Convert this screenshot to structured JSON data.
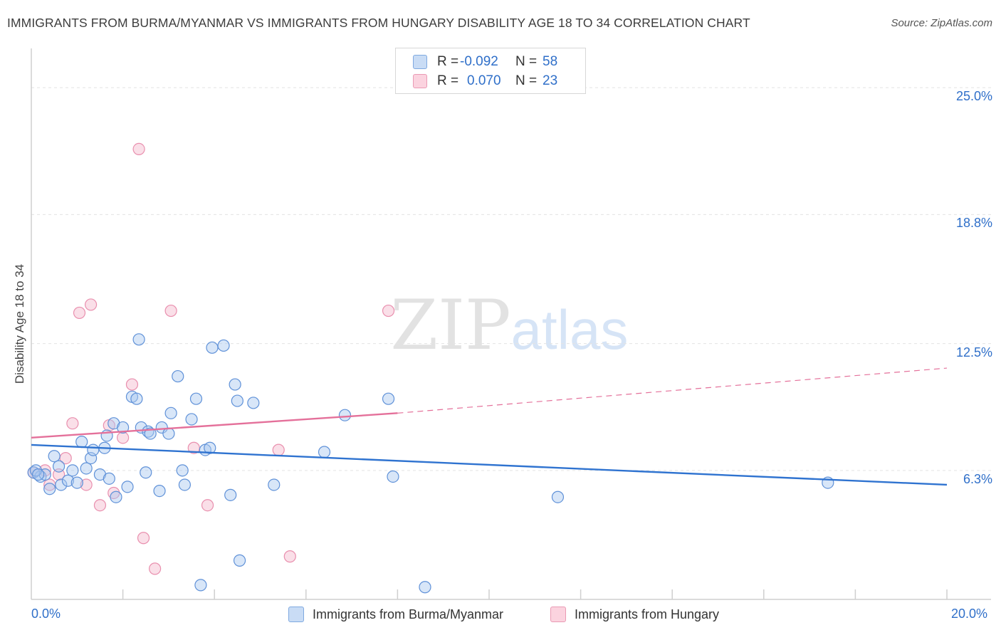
{
  "header": {
    "title": "IMMIGRANTS FROM BURMA/MYANMAR VS IMMIGRANTS FROM HUNGARY DISABILITY AGE 18 TO 34 CORRELATION CHART",
    "source": "Source: ZipAtlas.com"
  },
  "watermark": {
    "zip": "ZIP",
    "atlas": "atlas"
  },
  "legend": {
    "rows": [
      {
        "r_label": "R =",
        "r_value": "-0.092",
        "n_label": "N =",
        "n_value": "58",
        "color": "#a9c8f0"
      },
      {
        "r_label": "R =",
        "r_value": "0.070",
        "n_label": "N =",
        "n_value": "23",
        "color": "#f5b8cb"
      }
    ]
  },
  "bottom_legend": {
    "series1": "Immigrants from Burma/Myanmar",
    "series2": "Immigrants from Hungary"
  },
  "chart_data": {
    "type": "scatter",
    "title": "IMMIGRANTS FROM BURMA/MYANMAR VS IMMIGRANTS FROM HUNGARY DISABILITY AGE 18 TO 34 CORRELATION CHART",
    "xlabel": "",
    "ylabel": "Disability Age 18 to 34",
    "xlim": [
      0,
      20
    ],
    "ylim": [
      0,
      26.5
    ],
    "x_tick_labels": [
      "0.0%",
      "20.0%"
    ],
    "y_ticks": [
      {
        "value": 25.0,
        "label": "25.0%"
      },
      {
        "value": 18.8,
        "label": "18.8%"
      },
      {
        "value": 12.5,
        "label": "12.5%"
      },
      {
        "value": 6.3,
        "label": "6.3%"
      }
    ],
    "grid": true,
    "colors": {
      "series1": "#2f73d0",
      "series2": "#e4709a",
      "fill1": "#a9c8f0",
      "fill2": "#f5b8cb"
    },
    "series": [
      {
        "name": "Immigrants from Burma/Myanmar",
        "trend": {
          "x": [
            0,
            20
          ],
          "y": [
            7.55,
            5.6
          ]
        },
        "points": [
          [
            0.05,
            6.2
          ],
          [
            0.2,
            6.0
          ],
          [
            0.3,
            6.1
          ],
          [
            0.4,
            5.4
          ],
          [
            0.5,
            7.0
          ],
          [
            0.6,
            6.5
          ],
          [
            0.65,
            5.6
          ],
          [
            0.8,
            5.8
          ],
          [
            0.9,
            6.3
          ],
          [
            1.1,
            7.7
          ],
          [
            1.2,
            6.4
          ],
          [
            1.3,
            6.9
          ],
          [
            1.35,
            7.3
          ],
          [
            1.5,
            6.1
          ],
          [
            1.6,
            7.4
          ],
          [
            1.65,
            8.0
          ],
          [
            1.7,
            5.9
          ],
          [
            1.8,
            8.6
          ],
          [
            1.85,
            5.0
          ],
          [
            2.0,
            8.4
          ],
          [
            2.1,
            5.5
          ],
          [
            2.2,
            9.9
          ],
          [
            2.3,
            9.8
          ],
          [
            2.35,
            12.7
          ],
          [
            2.4,
            8.4
          ],
          [
            2.5,
            6.2
          ],
          [
            2.55,
            8.2
          ],
          [
            2.6,
            8.1
          ],
          [
            2.8,
            5.3
          ],
          [
            2.85,
            8.4
          ],
          [
            3.0,
            8.1
          ],
          [
            3.05,
            9.1
          ],
          [
            3.2,
            10.9
          ],
          [
            3.3,
            6.3
          ],
          [
            3.35,
            5.6
          ],
          [
            3.5,
            8.8
          ],
          [
            3.6,
            9.8
          ],
          [
            3.7,
            0.7
          ],
          [
            3.8,
            7.3
          ],
          [
            3.9,
            7.4
          ],
          [
            3.95,
            12.3
          ],
          [
            4.2,
            12.4
          ],
          [
            4.35,
            5.1
          ],
          [
            4.45,
            10.5
          ],
          [
            4.5,
            9.7
          ],
          [
            4.55,
            1.9
          ],
          [
            4.85,
            9.6
          ],
          [
            5.3,
            5.6
          ],
          [
            6.4,
            7.2
          ],
          [
            6.85,
            9.0
          ],
          [
            7.8,
            9.8
          ],
          [
            7.9,
            6.0
          ],
          [
            8.6,
            0.6
          ],
          [
            11.5,
            5.0
          ],
          [
            17.4,
            5.7
          ],
          [
            0.1,
            6.3
          ],
          [
            0.15,
            6.1
          ],
          [
            1.0,
            5.7
          ]
        ]
      },
      {
        "name": "Immigrants from Hungary",
        "trend": {
          "x": [
            0,
            8.0,
            20
          ],
          "y": [
            7.9,
            9.1,
            11.3
          ],
          "solid_until": 8.0
        },
        "points": [
          [
            0.05,
            6.2
          ],
          [
            0.3,
            6.3
          ],
          [
            0.4,
            5.6
          ],
          [
            0.6,
            6.1
          ],
          [
            0.75,
            6.9
          ],
          [
            0.9,
            8.6
          ],
          [
            1.05,
            14.0
          ],
          [
            1.2,
            5.6
          ],
          [
            1.3,
            14.4
          ],
          [
            1.5,
            4.6
          ],
          [
            1.7,
            8.5
          ],
          [
            1.8,
            5.2
          ],
          [
            2.0,
            7.9
          ],
          [
            2.2,
            10.5
          ],
          [
            2.35,
            22.0
          ],
          [
            2.45,
            3.0
          ],
          [
            2.7,
            1.5
          ],
          [
            3.05,
            14.1
          ],
          [
            3.55,
            7.4
          ],
          [
            3.85,
            4.6
          ],
          [
            5.4,
            7.3
          ],
          [
            5.65,
            2.1
          ],
          [
            7.8,
            14.1
          ]
        ]
      }
    ]
  }
}
